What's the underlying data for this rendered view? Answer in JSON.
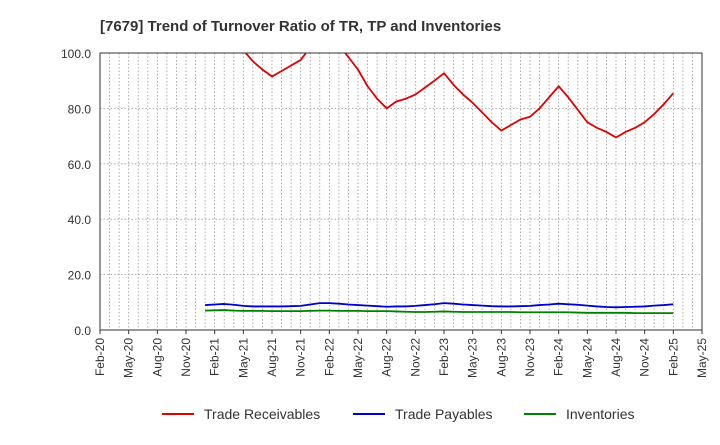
{
  "chart_data": {
    "type": "line",
    "title": "[7679]  Trend of Turnover Ratio of TR, TP and Inventories",
    "xlabel": "",
    "ylabel": "",
    "ylim": [
      0,
      100
    ],
    "yticks": [
      "0.0",
      "20.0",
      "40.0",
      "60.0",
      "80.0",
      "100.0"
    ],
    "xticks": [
      "Feb-20",
      "May-20",
      "Aug-20",
      "Nov-20",
      "Feb-21",
      "May-21",
      "Aug-21",
      "Nov-21",
      "Feb-22",
      "May-22",
      "Aug-22",
      "Nov-22",
      "Feb-23",
      "May-23",
      "Aug-23",
      "Nov-23",
      "Feb-24",
      "May-24",
      "Aug-24",
      "Nov-24",
      "Feb-25",
      "May-25"
    ],
    "grid": true,
    "legend_position": "bottom",
    "x": [
      "Dec-20",
      "Jan-21",
      "Feb-21",
      "Mar-21",
      "Apr-21",
      "May-21",
      "Jun-21",
      "Jul-21",
      "Aug-21",
      "Sep-21",
      "Oct-21",
      "Nov-21",
      "Dec-21",
      "Jan-22",
      "Feb-22",
      "Mar-22",
      "Apr-22",
      "May-22",
      "Jun-22",
      "Jul-22",
      "Aug-22",
      "Sep-22",
      "Oct-22",
      "Nov-22",
      "Dec-22",
      "Jan-23",
      "Feb-23",
      "Mar-23",
      "Apr-23",
      "May-23",
      "Jun-23",
      "Jul-23",
      "Aug-23",
      "Sep-23",
      "Oct-23",
      "Nov-23",
      "Dec-23",
      "Jan-24",
      "Feb-24",
      "Mar-24",
      "Apr-24",
      "May-24",
      "Jun-24",
      "Jul-24",
      "Aug-24",
      "Sep-24",
      "Oct-24",
      "Nov-24",
      "Dec-24",
      "Jan-25",
      "Feb-25"
    ],
    "series": [
      {
        "name": "Trade Receivables",
        "color": "#e00000",
        "values": [
          null,
          null,
          null,
          null,
          null,
          101,
          97,
          94,
          91.5,
          93.5,
          95.5,
          97.5,
          102,
          108,
          108,
          103,
          98.5,
          94,
          88,
          83.5,
          80,
          82.5,
          83.5,
          85,
          87.5,
          90,
          92.7,
          88.5,
          85,
          82,
          78.5,
          75,
          72,
          74,
          76,
          77,
          80,
          84,
          88,
          84,
          79.5,
          75,
          73,
          71.5,
          69.5,
          71.5,
          73,
          75,
          78,
          81.5,
          85.5
        ]
      },
      {
        "name": "Trade Payables",
        "color": "#0000cc",
        "values": [
          null,
          9,
          9.2,
          9.4,
          9.1,
          8.7,
          8.5,
          8.5,
          8.5,
          8.5,
          8.6,
          8.7,
          9.2,
          9.7,
          9.7,
          9.5,
          9.2,
          9,
          8.8,
          8.6,
          8.4,
          8.5,
          8.5,
          8.7,
          9,
          9.3,
          9.7,
          9.5,
          9.2,
          9,
          8.8,
          8.6,
          8.5,
          8.5,
          8.6,
          8.7,
          9,
          9.2,
          9.5,
          9.3,
          9.1,
          8.8,
          8.5,
          8.3,
          8.2,
          8.3,
          8.4,
          8.5,
          8.8,
          9,
          9.3
        ]
      },
      {
        "name": "Inventories",
        "color": "#008000",
        "values": [
          null,
          7,
          7.1,
          7.2,
          7,
          6.9,
          6.9,
          6.9,
          6.8,
          6.8,
          6.8,
          6.8,
          6.9,
          7,
          7,
          6.9,
          6.9,
          6.9,
          6.8,
          6.8,
          6.8,
          6.7,
          6.6,
          6.5,
          6.5,
          6.6,
          6.7,
          6.6,
          6.5,
          6.5,
          6.5,
          6.5,
          6.5,
          6.5,
          6.4,
          6.4,
          6.4,
          6.4,
          6.4,
          6.4,
          6.3,
          6.2,
          6.2,
          6.2,
          6.2,
          6.2,
          6.1,
          6.1,
          6.1,
          6.1,
          6.1
        ]
      }
    ]
  }
}
